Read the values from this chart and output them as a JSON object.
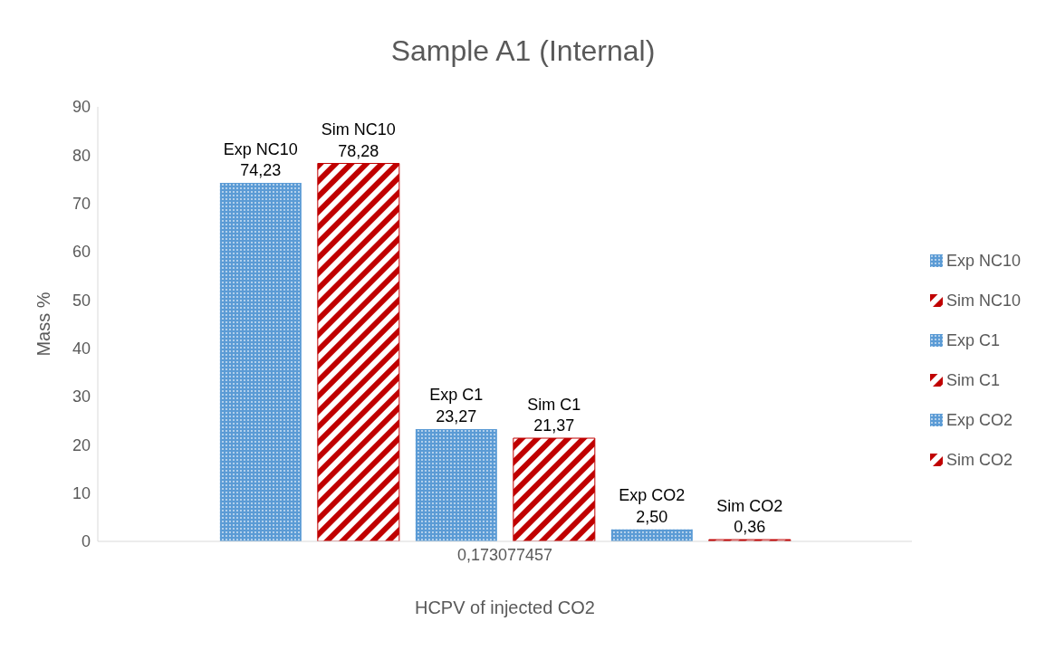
{
  "chart_data": {
    "type": "bar",
    "title": "Sample A1 (Internal)",
    "xlabel": "HCPV of injected CO2",
    "ylabel": "Mass %",
    "categories": [
      "0,173077457"
    ],
    "series": [
      {
        "name": "Exp NC10",
        "color": "#5b9bd5",
        "values": [
          74.23
        ],
        "value_labels": [
          "74,23"
        ]
      },
      {
        "name": "Sim NC10",
        "color": "#c00000",
        "values": [
          78.28
        ],
        "value_labels": [
          "78,28"
        ]
      },
      {
        "name": "Exp C1",
        "color": "#5b9bd5",
        "values": [
          23.27
        ],
        "value_labels": [
          "23,27"
        ]
      },
      {
        "name": "Sim C1",
        "color": "#c00000",
        "values": [
          21.37
        ],
        "value_labels": [
          "21,37"
        ]
      },
      {
        "name": "Exp CO2",
        "color": "#5b9bd5",
        "values": [
          2.5
        ],
        "value_labels": [
          "2,50"
        ]
      },
      {
        "name": "Sim CO2",
        "color": "#c00000",
        "values": [
          0.36
        ],
        "value_labels": [
          "0,36"
        ]
      }
    ],
    "ylim": [
      0,
      90
    ],
    "yticks": [
      0,
      10,
      20,
      30,
      40,
      50,
      60,
      70,
      80,
      90
    ],
    "grid": false,
    "legend": "right"
  }
}
